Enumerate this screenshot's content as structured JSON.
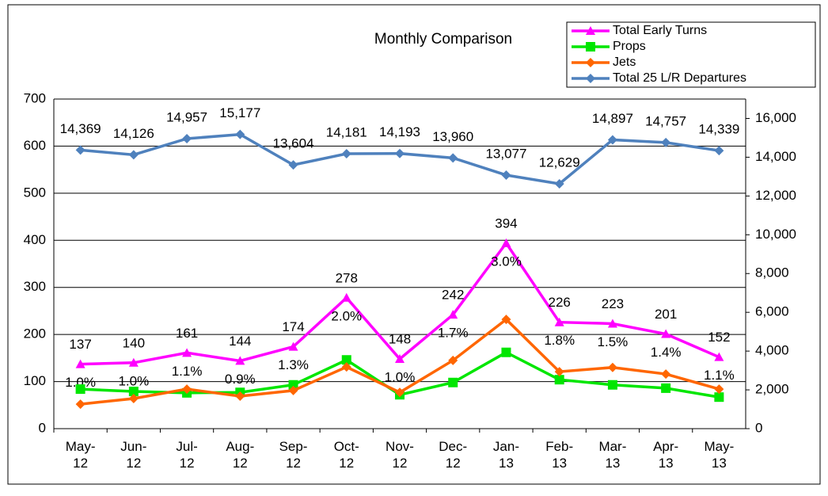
{
  "chart_data": {
    "type": "line",
    "title": "Monthly Comparison",
    "categories": [
      "May-12",
      "Jun-12",
      "Jul-12",
      "Aug-12",
      "Sep-12",
      "Oct-12",
      "Nov-12",
      "Dec-12",
      "Jan-13",
      "Feb-13",
      "Mar-13",
      "Apr-13",
      "May-13"
    ],
    "ylim": [
      0,
      700
    ],
    "yticks": [
      0,
      100,
      200,
      300,
      400,
      500,
      600,
      700
    ],
    "y2lim": [
      0,
      17000
    ],
    "y2ticks": [
      0,
      {
        "value": 2000,
        "label": "2,000"
      },
      {
        "value": 4000,
        "label": "4,000"
      },
      {
        "value": 6000,
        "label": "6,000"
      },
      {
        "value": 8000,
        "label": "8,000"
      },
      {
        "value": 10000,
        "label": "10,000"
      },
      {
        "value": 12000,
        "label": "12,000"
      },
      {
        "value": 14000,
        "label": "14,000"
      },
      {
        "value": 16000,
        "label": "16,000"
      }
    ],
    "grid": true,
    "series": [
      {
        "name": "Total Early Turns",
        "color": "#ff00ff",
        "marker": "triangle",
        "values": [
          137,
          140,
          161,
          144,
          174,
          278,
          148,
          242,
          394,
          226,
          223,
          201,
          152
        ],
        "ratio_labels": [
          "1.0%",
          "1.0%",
          "1.1%",
          "0.9%",
          "1.3%",
          "2.0%",
          "1.0%",
          "1.7%",
          "3.0%",
          "1.8%",
          "1.5%",
          "1.4%",
          "1.1%"
        ]
      },
      {
        "name": "Props",
        "color": "#00e600",
        "marker": "square",
        "values": [
          84,
          79,
          76,
          77,
          93,
          146,
          72,
          98,
          162,
          104,
          93,
          86,
          67
        ]
      },
      {
        "name": "Jets",
        "color": "#ff6600",
        "marker": "diamond",
        "values": [
          52,
          64,
          84,
          69,
          81,
          131,
          77,
          145,
          232,
          121,
          130,
          116,
          84
        ]
      },
      {
        "name": "Total 25 L/R Departures",
        "color": "#4f81bd",
        "marker": "diamond",
        "axis": "y2",
        "values": [
          14369,
          14126,
          14957,
          15177,
          13604,
          14181,
          14193,
          13960,
          13077,
          12629,
          14897,
          14757,
          14339
        ],
        "value_labels": [
          "14,369",
          "14,126",
          "14,957",
          "15,177",
          "13,604",
          "14,181",
          "14,193",
          "13,960",
          "13,077",
          "12,629",
          "14,897",
          "14,757",
          "14,339"
        ]
      }
    ]
  }
}
